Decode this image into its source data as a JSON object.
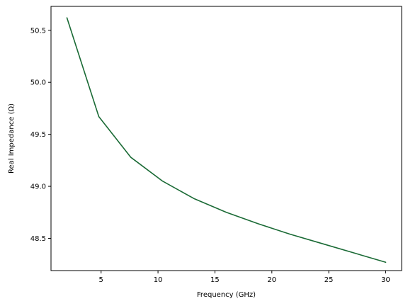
{
  "chart_data": {
    "type": "line",
    "title": "",
    "xlabel": "Frequency (GHz)",
    "ylabel": "Real Impedance (Ω)",
    "xlim": [
      0.6,
      31.4
    ],
    "ylim": [
      48.19,
      50.73
    ],
    "x_ticks": [
      5,
      10,
      15,
      20,
      25,
      30
    ],
    "x_tick_labels": [
      "5",
      "10",
      "15",
      "20",
      "25",
      "30"
    ],
    "y_ticks": [
      48.5,
      49.0,
      49.5,
      50.0,
      50.5
    ],
    "y_tick_labels": [
      "48.5",
      "49.0",
      "49.5",
      "50.0",
      "50.5"
    ],
    "grid": false,
    "series": [
      {
        "color": "#1a6a35",
        "x": [
          2.0,
          4.8,
          7.6,
          10.4,
          13.2,
          16.0,
          18.8,
          21.6,
          24.4,
          27.2,
          30.0
        ],
        "y": [
          50.62,
          49.67,
          49.28,
          49.05,
          48.88,
          48.75,
          48.64,
          48.54,
          48.45,
          48.36,
          48.27
        ]
      }
    ]
  }
}
